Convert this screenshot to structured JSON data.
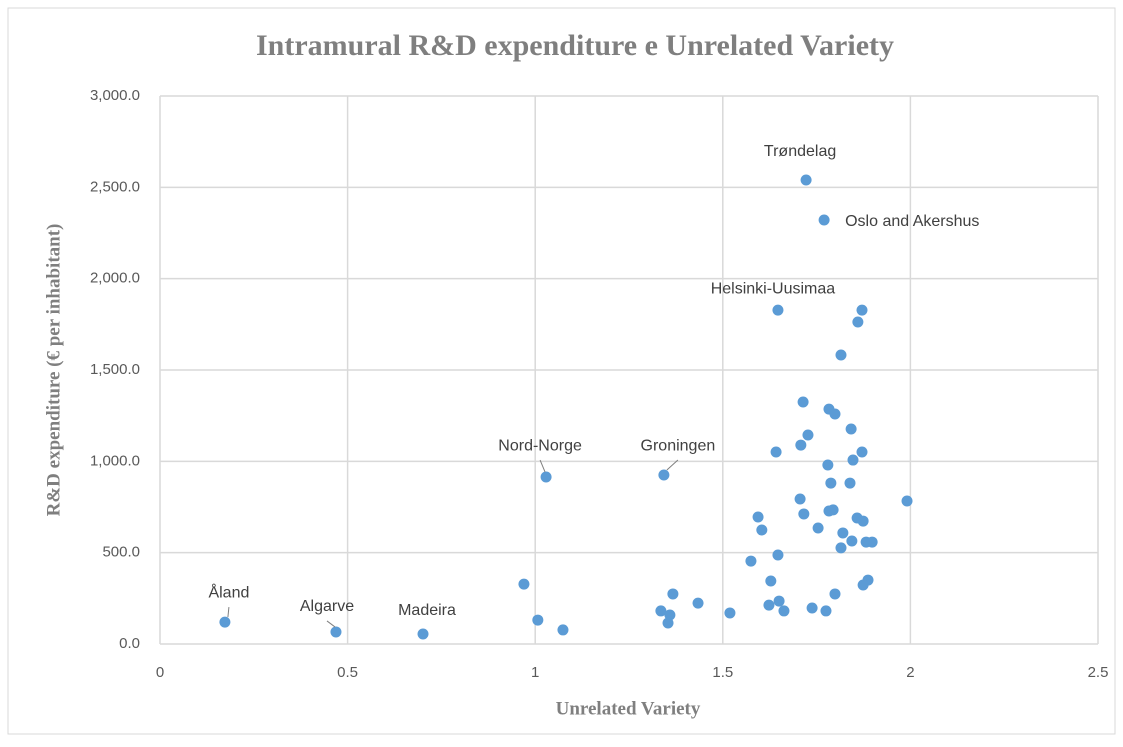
{
  "chart_data": {
    "type": "scatter",
    "title": "Intramural R&D expenditure e Unrelated Variety",
    "x_label": "Unrelated Variety",
    "y_label": "R&D expenditure (€ per inhabitant)",
    "color": "#5b9bd5",
    "grid": true,
    "xlim": [
      0,
      2.5
    ],
    "xticks": [
      0,
      0.5,
      1,
      1.5,
      2,
      2.5
    ],
    "ylim": [
      0,
      3000
    ],
    "yticks": [
      {
        "value": 0,
        "label": "0.0"
      },
      {
        "value": 500,
        "label": "500.0"
      },
      {
        "value": 1000,
        "label": "1,000.0"
      },
      {
        "value": 1500,
        "label": "1,500.0"
      },
      {
        "value": 2000,
        "label": "2,000.0"
      },
      {
        "value": 2500,
        "label": "2,500.0"
      },
      {
        "value": 3000,
        "label": "3,000.0"
      }
    ],
    "x": [
      1.722,
      1.77,
      1.647,
      1.029,
      1.343,
      0.173,
      0.469,
      0.701,
      1.871,
      1.86,
      1.815,
      1.714,
      1.783,
      1.799,
      1.727,
      1.842,
      1.708,
      1.642,
      1.847,
      1.871,
      1.78,
      1.788,
      1.839,
      1.706,
      1.716,
      1.783,
      1.794,
      1.594,
      1.604,
      1.754,
      1.858,
      1.874,
      1.991,
      1.82,
      1.844,
      1.882,
      1.898,
      1.815,
      1.647,
      1.575,
      1.628,
      1.887,
      1.874,
      1.799,
      1.65,
      1.623,
      1.663,
      1.738,
      1.775,
      1.519,
      1.335,
      1.359,
      1.354,
      1.367,
      1.434,
      0.97,
      1.007,
      1.074
    ],
    "values": [
      2540,
      2321,
      1828,
      914,
      925,
      120,
      66,
      55,
      1828,
      1763,
      1582,
      1325,
      1286,
      1259,
      1144,
      1177,
      1089,
      1051,
      1007,
      1051,
      980,
      881,
      881,
      794,
      712,
      728,
      734,
      695,
      624,
      635,
      690,
      673,
      783,
      608,
      564,
      558,
      558,
      526,
      487,
      454,
      345,
      350,
      323,
      274,
      235,
      213,
      181,
      197,
      181,
      170,
      181,
      159,
      115,
      274,
      224,
      328,
      131,
      77
    ],
    "point_labels": [
      "Trøndelag",
      "Oslo and Akershus",
      "Helsinki-Uusimaa",
      "Nord-Norge",
      "Groningen",
      "Åland",
      "Algarve",
      "Madeira",
      null,
      null,
      null,
      null,
      null,
      null,
      null,
      null,
      null,
      null,
      null,
      null,
      null,
      null,
      null,
      null,
      null,
      null,
      null,
      null,
      null,
      null,
      null,
      null,
      null,
      null,
      null,
      null,
      null,
      null,
      null,
      null,
      null,
      null,
      null,
      null,
      null,
      null,
      null,
      null,
      null,
      null,
      null,
      null,
      null,
      null,
      null,
      null,
      null,
      null
    ]
  }
}
